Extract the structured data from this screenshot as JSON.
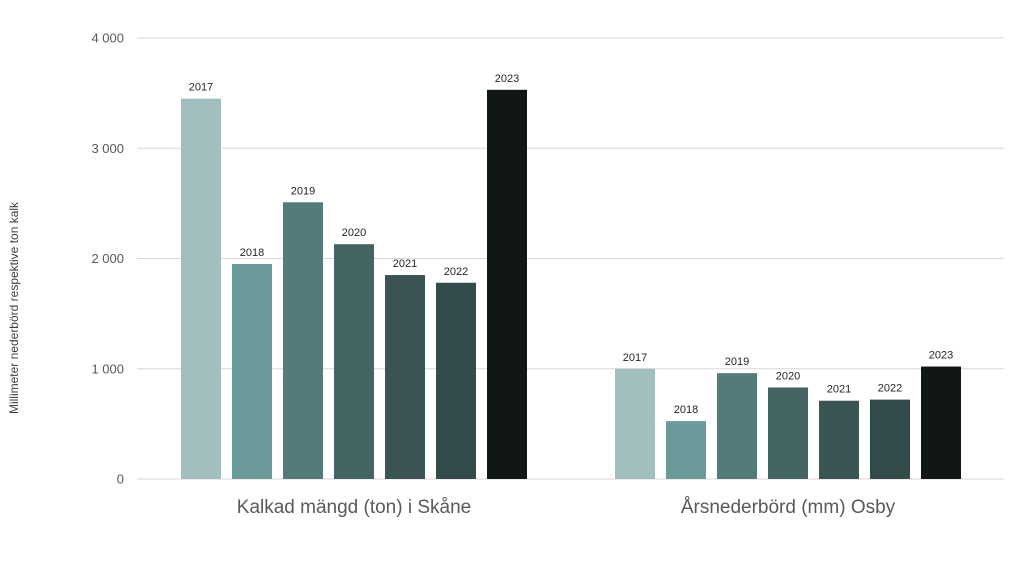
{
  "chart_data": {
    "type": "bar",
    "title": "",
    "xlabel": "",
    "ylabel": "Millimeter nederbörd respektive ton kalk",
    "ylim": [
      0,
      4000
    ],
    "y_ticks": [
      0,
      1000,
      2000,
      3000,
      4000
    ],
    "y_tick_labels": [
      "0",
      "1 000",
      "2 000",
      "3 000",
      "4 000"
    ],
    "grid": true,
    "legend": "none",
    "categories": [
      "Kalkad mängd (ton) i Skåne",
      "Årsnederbörd (mm) Osby"
    ],
    "series": [
      {
        "name": "2017",
        "color": "#a2bfc0",
        "values": [
          3450,
          1000
        ]
      },
      {
        "name": "2018",
        "color": "#6a9a99",
        "values": [
          1950,
          525
        ]
      },
      {
        "name": "2019",
        "color": "#527b79",
        "values": [
          2510,
          960
        ]
      },
      {
        "name": "2020",
        "color": "#456564",
        "values": [
          2130,
          830
        ]
      },
      {
        "name": "2021",
        "color": "#3a5454",
        "values": [
          1850,
          710
        ]
      },
      {
        "name": "2022",
        "color": "#334b4a",
        "values": [
          1780,
          720
        ]
      },
      {
        "name": "2023",
        "color": "#111716",
        "values": [
          3530,
          1020
        ]
      }
    ]
  }
}
